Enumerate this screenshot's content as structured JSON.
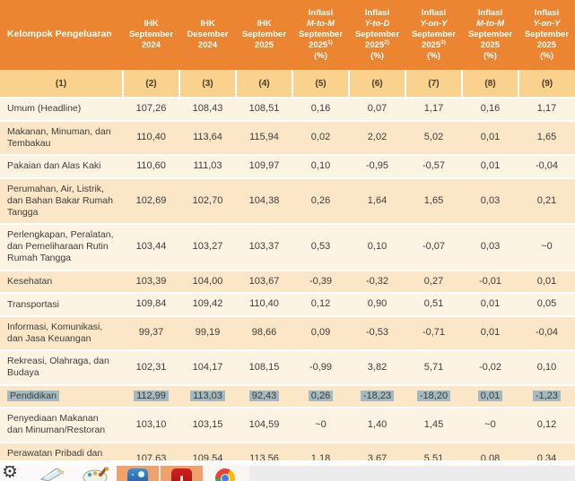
{
  "table": {
    "columns": [
      {
        "id": "kelompok-pengeluaran",
        "num": "(1)",
        "lines": [
          {
            "t": "Kelompok Pengeluaran"
          }
        ]
      },
      {
        "id": "ihk-september-2024",
        "num": "(2)",
        "lines": [
          {
            "t": "IHK"
          },
          {
            "t": "September"
          },
          {
            "t": "2024"
          }
        ]
      },
      {
        "id": "ihk-desember-2024",
        "num": "(3)",
        "lines": [
          {
            "t": "IHK"
          },
          {
            "t": "Desember"
          },
          {
            "t": "2024"
          }
        ]
      },
      {
        "id": "ihk-september-2025",
        "num": "(4)",
        "lines": [
          {
            "t": "IHK"
          },
          {
            "t": "September"
          },
          {
            "t": "2025"
          }
        ]
      },
      {
        "id": "inflasi-m-to-m-september-2025-fn1",
        "num": "(5)",
        "lines": [
          {
            "t": "Inflasi"
          },
          {
            "t": "M-to-M",
            "italic": true
          },
          {
            "t": "September"
          },
          {
            "t": "2025",
            "sup": "1)"
          },
          {
            "t": "(%)"
          }
        ]
      },
      {
        "id": "inflasi-y-to-d-september-2025-fn2",
        "num": "(6)",
        "lines": [
          {
            "t": "Inflasi"
          },
          {
            "t": "Y-to-D",
            "italic": true
          },
          {
            "t": "September"
          },
          {
            "t": "2025",
            "sup": "2)"
          },
          {
            "t": "(%)"
          }
        ]
      },
      {
        "id": "inflasi-y-on-y-september-2025-fn3",
        "num": "(7)",
        "lines": [
          {
            "t": "Inflasi"
          },
          {
            "t": "Y-on-Y",
            "italic": true
          },
          {
            "t": "September"
          },
          {
            "t": "2025",
            "sup": "3)"
          },
          {
            "t": "(%)"
          }
        ]
      },
      {
        "id": "inflasi-m-to-m-september-2025",
        "num": "(8)",
        "lines": [
          {
            "t": "Inflasi"
          },
          {
            "t": "M-to-M",
            "italic": true
          },
          {
            "t": "September"
          },
          {
            "t": "2025"
          },
          {
            "t": "(%)"
          }
        ]
      },
      {
        "id": "inflasi-y-on-y-september-2025",
        "num": "(9)",
        "lines": [
          {
            "t": "Inflasi"
          },
          {
            "t": "Y-on-Y",
            "italic": true
          },
          {
            "t": "September"
          },
          {
            "t": "2025"
          },
          {
            "t": "(%)"
          }
        ]
      }
    ],
    "rows": [
      {
        "label": "Umum (Headline)",
        "values": [
          "107,26",
          "108,43",
          "108,51",
          "0,16",
          "0,07",
          "1,17",
          "0,16",
          "1,17"
        ],
        "highlighted": false
      },
      {
        "label": "Makanan, Minuman, dan Tembakau",
        "values": [
          "110,40",
          "113,64",
          "115,94",
          "0,02",
          "2,02",
          "5,02",
          "0,01",
          "1,65"
        ],
        "highlighted": false
      },
      {
        "label": "Pakaian dan Alas Kaki",
        "values": [
          "110,60",
          "111,03",
          "109,97",
          "0,10",
          "-0,95",
          "-0,57",
          "0,01",
          "-0,04"
        ],
        "highlighted": false
      },
      {
        "label": "Perumahan, Air, Listrik, dan Bahan Bakar Rumah Tangga",
        "values": [
          "102,69",
          "102,70",
          "104,38",
          "0,26",
          "1,64",
          "1,65",
          "0,03",
          "0,21"
        ],
        "highlighted": false
      },
      {
        "label": "Perlengkapan, Peralatan, dan Pemeliharaan Rutin Rumah Tangga",
        "values": [
          "103,44",
          "103,27",
          "103,37",
          "0,53",
          "0,10",
          "-0,07",
          "0,03",
          "~0"
        ],
        "highlighted": false
      },
      {
        "label": "Kesehatan",
        "values": [
          "103,39",
          "104,00",
          "103,67",
          "-0,39",
          "-0,32",
          "0,27",
          "-0,01",
          "0,01"
        ],
        "highlighted": false
      },
      {
        "label": "Transportasi",
        "values": [
          "109,84",
          "109,42",
          "110,40",
          "0,12",
          "0,90",
          "0,51",
          "0,01",
          "0,05"
        ],
        "highlighted": false
      },
      {
        "label": "Informasi, Komunikasi, dan Jasa Keuangan",
        "values": [
          "99,37",
          "99,19",
          "98,66",
          "0,09",
          "-0,53",
          "-0,71",
          "0,01",
          "-0,04"
        ],
        "highlighted": false
      },
      {
        "label": "Rekreasi, Olahraga, dan Budaya",
        "values": [
          "102,31",
          "104,17",
          "108,15",
          "-0,99",
          "3,82",
          "5,71",
          "-0,02",
          "0,10"
        ],
        "highlighted": false
      },
      {
        "label": "Pendidikan",
        "values": [
          "112,99",
          "113,03",
          "92,43",
          "0,26",
          "-18,23",
          "-18,20",
          "0,01",
          "-1,23"
        ],
        "highlighted": true
      },
      {
        "label": "Penyediaan Makanan dan Minuman/Restoran",
        "values": [
          "103,10",
          "103,15",
          "104,59",
          "~0",
          "1,40",
          "1,45",
          "~0",
          "0,12"
        ],
        "highlighted": false
      },
      {
        "label": "Perawatan Pribadi dan Jasa Lainnya",
        "values": [
          "107,63",
          "109,54",
          "113,56",
          "1,18",
          "3,67",
          "5,51",
          "0,08",
          "0,34"
        ],
        "highlighted": false
      }
    ]
  },
  "colors": {
    "header_bg": "#EC8532",
    "header_text": "#FFFFFF",
    "column_number_row_bg": "#FAD28D",
    "row_light": "#FDF3E3",
    "row_dark": "#FBE7C7",
    "body_text": "#3E3C39",
    "selection_highlight": "#A3BAC1",
    "taskbar_bg": "#ECECEC",
    "taskbar_tile_orange": "#F0A26B"
  },
  "taskbar": {
    "items": [
      "settings-gear",
      "notepad",
      "paint-palette",
      "photos-app",
      "media-app",
      "chrome-browser"
    ]
  }
}
